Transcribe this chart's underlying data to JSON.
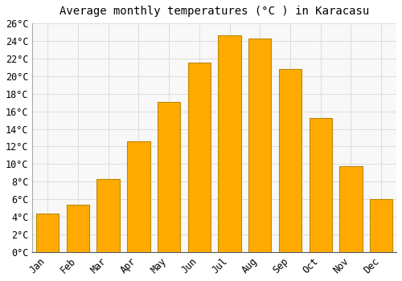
{
  "title": "Average monthly temperatures (°C ) in Karacasu",
  "months": [
    "Jan",
    "Feb",
    "Mar",
    "Apr",
    "May",
    "Jun",
    "Jul",
    "Aug",
    "Sep",
    "Oct",
    "Nov",
    "Dec"
  ],
  "values": [
    4.4,
    5.4,
    8.3,
    12.6,
    17.1,
    21.5,
    24.6,
    24.3,
    20.8,
    15.2,
    9.8,
    6.0
  ],
  "bar_color": "#FFAA00",
  "bar_edge_color": "#BB8800",
  "ylim": [
    0,
    26
  ],
  "ytick_step": 2,
  "background_color": "#FFFFFF",
  "plot_bg_color": "#F8F8F8",
  "grid_color": "#DDDDDD",
  "title_fontsize": 10,
  "tick_fontsize": 8.5,
  "bar_width": 0.75
}
